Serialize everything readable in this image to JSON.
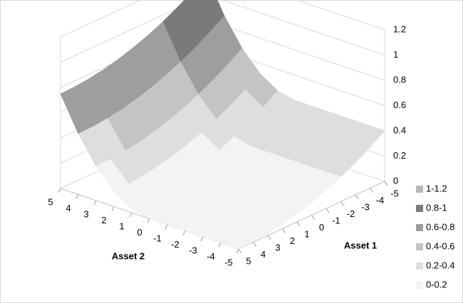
{
  "chart_data": {
    "type": "surface",
    "x_label": "Asset 1",
    "y_label": "Asset 2",
    "asset1": [
      -5,
      -4,
      -3,
      -2,
      -1,
      0,
      1,
      2,
      3,
      4,
      5
    ],
    "asset2": [
      5,
      4,
      3,
      2,
      1,
      0,
      -1,
      -2,
      -3,
      -4,
      -5
    ],
    "values": [
      [
        1.15,
        0.88,
        0.67,
        0.52,
        0.43,
        0.4,
        0.4,
        0.4,
        0.4,
        0.4,
        0.4
      ],
      [
        1.074,
        0.804,
        0.594,
        0.444,
        0.354,
        0.324,
        0.324,
        0.324,
        0.324,
        0.324,
        0.324
      ],
      [
        1.006,
        0.736,
        0.526,
        0.376,
        0.286,
        0.256,
        0.256,
        0.256,
        0.256,
        0.256,
        0.256
      ],
      [
        0.946,
        0.676,
        0.466,
        0.316,
        0.226,
        0.196,
        0.196,
        0.196,
        0.196,
        0.196,
        0.196
      ],
      [
        0.894,
        0.624,
        0.414,
        0.264,
        0.174,
        0.144,
        0.144,
        0.144,
        0.144,
        0.144,
        0.144
      ],
      [
        0.85,
        0.58,
        0.37,
        0.22,
        0.13,
        0.1,
        0.1,
        0.1,
        0.1,
        0.1,
        0.1
      ],
      [
        0.814,
        0.544,
        0.334,
        0.184,
        0.094,
        0.064,
        0.064,
        0.064,
        0.064,
        0.064,
        0.064
      ],
      [
        0.786,
        0.516,
        0.306,
        0.156,
        0.066,
        0.036,
        0.036,
        0.036,
        0.036,
        0.036,
        0.036
      ],
      [
        0.766,
        0.496,
        0.286,
        0.136,
        0.046,
        0.016,
        0.016,
        0.016,
        0.016,
        0.016,
        0.016
      ],
      [
        0.754,
        0.484,
        0.274,
        0.124,
        0.034,
        0.004,
        0.004,
        0.004,
        0.004,
        0.004,
        0.004
      ],
      [
        0.75,
        0.48,
        0.27,
        0.12,
        0.03,
        0,
        0,
        0,
        0,
        0,
        0
      ]
    ],
    "zlim": [
      0,
      1.2
    ],
    "zticks": [
      0,
      0.2,
      0.4,
      0.6,
      0.8,
      1,
      1.2
    ],
    "grid": true,
    "legend_position": "right",
    "legend": [
      {
        "name": "1-1.2",
        "color": "#b8b8b8"
      },
      {
        "name": "0.8-1",
        "color": "#7a7a7a"
      },
      {
        "name": "0.6-0.8",
        "color": "#9e9e9e"
      },
      {
        "name": "0.4-0.6",
        "color": "#c4c4c4"
      },
      {
        "name": "0.2-0.4",
        "color": "#dedede"
      },
      {
        "name": "0-0.2",
        "color": "#f3f3f3"
      }
    ]
  }
}
